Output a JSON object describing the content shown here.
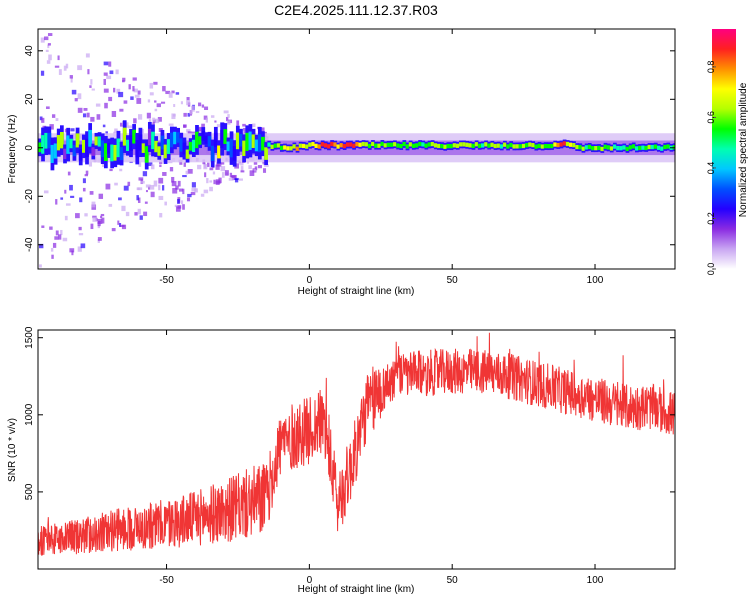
{
  "title": "C2E4.2025.111.12.37.R03",
  "chart_data": [
    {
      "type": "heatmap",
      "title": "C2E4.2025.111.12.37.R03",
      "xlabel": "Height of straight line (km)",
      "ylabel": "Frequency (Hz)",
      "xlim": [
        -95,
        128
      ],
      "ylim": [
        -50,
        49
      ],
      "xticks": [
        -50,
        0,
        50,
        100
      ],
      "yticks": [
        -40,
        -20,
        0,
        20,
        40
      ],
      "colorbar": {
        "label": "Normalized spectral amplitude",
        "range": [
          0,
          0.95
        ],
        "ticks": [
          0.0,
          0.2,
          0.4,
          0.6,
          0.8
        ],
        "tick_labels": [
          "0.0",
          "0.2",
          "0.4",
          "0.6",
          "0.8"
        ],
        "colors": [
          "#ffffff",
          "#c9a6f2",
          "#8a2be2",
          "#2400ff",
          "#0050ff",
          "#00c8ff",
          "#00ffb0",
          "#00ff00",
          "#b4ff00",
          "#ffff00",
          "#ff9000",
          "#ff2020",
          "#ff0080"
        ]
      },
      "noise_band_hz": [
        -6,
        6
      ],
      "ridge_x_km": [
        -95,
        -80,
        -60,
        -40,
        -25,
        -15,
        -5,
        0,
        5,
        10,
        15,
        20,
        30,
        50,
        70,
        85,
        88,
        90,
        95,
        110,
        128
      ],
      "ridge_freq_hz": [
        1,
        1,
        1,
        1,
        1,
        1,
        0,
        1,
        1,
        1,
        1,
        1,
        1,
        1,
        1,
        1,
        2,
        1,
        0,
        0,
        0
      ],
      "ridge_amplitude": [
        0.4,
        0.45,
        0.45,
        0.45,
        0.5,
        0.55,
        0.75,
        0.7,
        0.9,
        0.85,
        0.9,
        0.65,
        0.6,
        0.6,
        0.6,
        0.65,
        0.9,
        0.7,
        0.6,
        0.55,
        0.55
      ]
    },
    {
      "type": "line",
      "xlabel": "Height of straight line (km)",
      "ylabel": "SNR (10 * v/v)",
      "xlim": [
        -95,
        128
      ],
      "ylim": [
        0,
        1550
      ],
      "xticks": [
        -50,
        0,
        50,
        100
      ],
      "yticks": [
        500,
        1000,
        1500
      ],
      "color": "#f03535",
      "series": [
        {
          "x": [
            -95,
            -85,
            -75,
            -65,
            -55,
            -45,
            -35,
            -25,
            -20,
            -15,
            -10,
            -5,
            0,
            5,
            10,
            15,
            20,
            25,
            30,
            40,
            50,
            60,
            70,
            80,
            90,
            100,
            110,
            120,
            128
          ],
          "y": [
            180,
            200,
            230,
            260,
            280,
            310,
            350,
            400,
            430,
            460,
            820,
            860,
            900,
            960,
            420,
            680,
            1050,
            1150,
            1250,
            1270,
            1280,
            1280,
            1250,
            1200,
            1150,
            1100,
            1050,
            1050,
            1000
          ]
        }
      ]
    }
  ]
}
